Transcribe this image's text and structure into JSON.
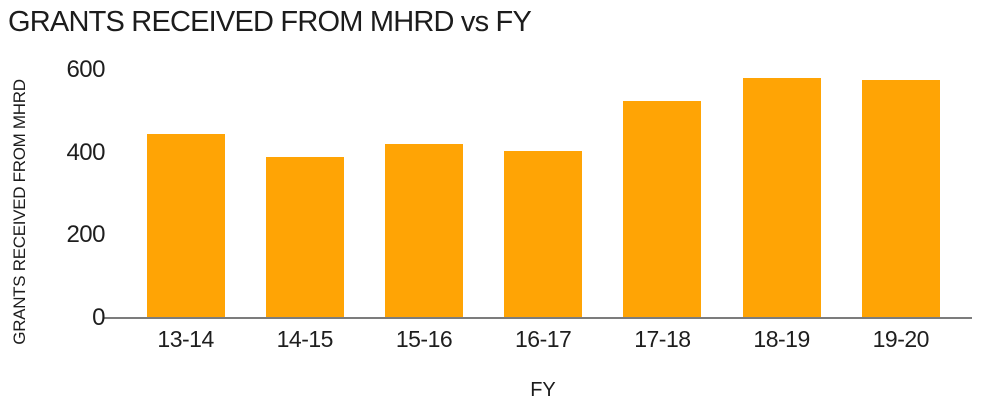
{
  "chart_data": {
    "type": "bar",
    "title": "GRANTS RECEIVED FROM MHRD vs FY",
    "xlabel": "FY",
    "ylabel": "GRANTS RECEIVED FROM MHRD",
    "categories": [
      "13-14",
      "14-15",
      "15-16",
      "16-17",
      "17-18",
      "18-19",
      "19-20"
    ],
    "values": [
      445,
      390,
      420,
      405,
      525,
      580,
      575
    ],
    "ylim": [
      0,
      600
    ],
    "yticks": [
      0,
      200,
      400,
      600
    ],
    "grid": false,
    "legend_position": "none",
    "bar_color": "#FFA405",
    "axis_line_color": "#7C7C7C",
    "text_color": "#1C1C1C"
  }
}
